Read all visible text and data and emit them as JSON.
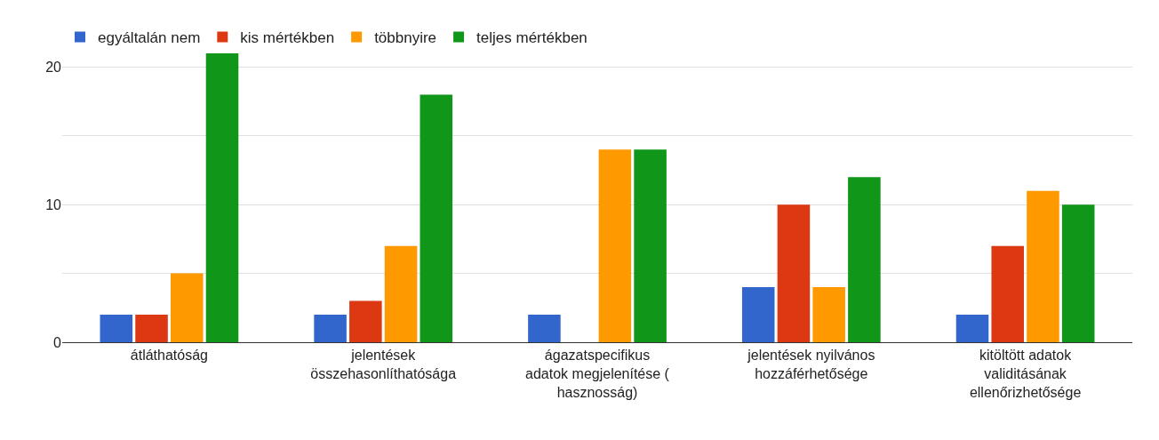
{
  "chart_data": {
    "type": "bar",
    "categories": [
      "átláthatóság",
      "jelentések összehasonlíthatósága",
      "ágazatspecifikus adatok megjelenítése ( hasznosság)",
      "jelentések nyilvános hozzáférhetősége",
      "kitöltött adatok validitásának ellenőrizhetősége"
    ],
    "series": [
      {
        "name": "egyáltalán nem",
        "color": "#3366cc",
        "values": [
          2,
          2,
          2,
          4,
          2
        ]
      },
      {
        "name": "kis mértékben",
        "color": "#dc3912",
        "values": [
          2,
          3,
          0,
          10,
          7
        ]
      },
      {
        "name": "többnyire",
        "color": "#ff9900",
        "values": [
          5,
          7,
          14,
          4,
          11
        ]
      },
      {
        "name": "teljes mértékben",
        "color": "#109618",
        "values": [
          21,
          18,
          14,
          12,
          10
        ]
      }
    ],
    "ylim": [
      0,
      21
    ],
    "yticks": [
      0,
      {
        "value": 5,
        "label": null
      },
      10,
      {
        "value": 15,
        "label": null
      },
      20
    ],
    "grid": "y",
    "legend": "top left"
  }
}
